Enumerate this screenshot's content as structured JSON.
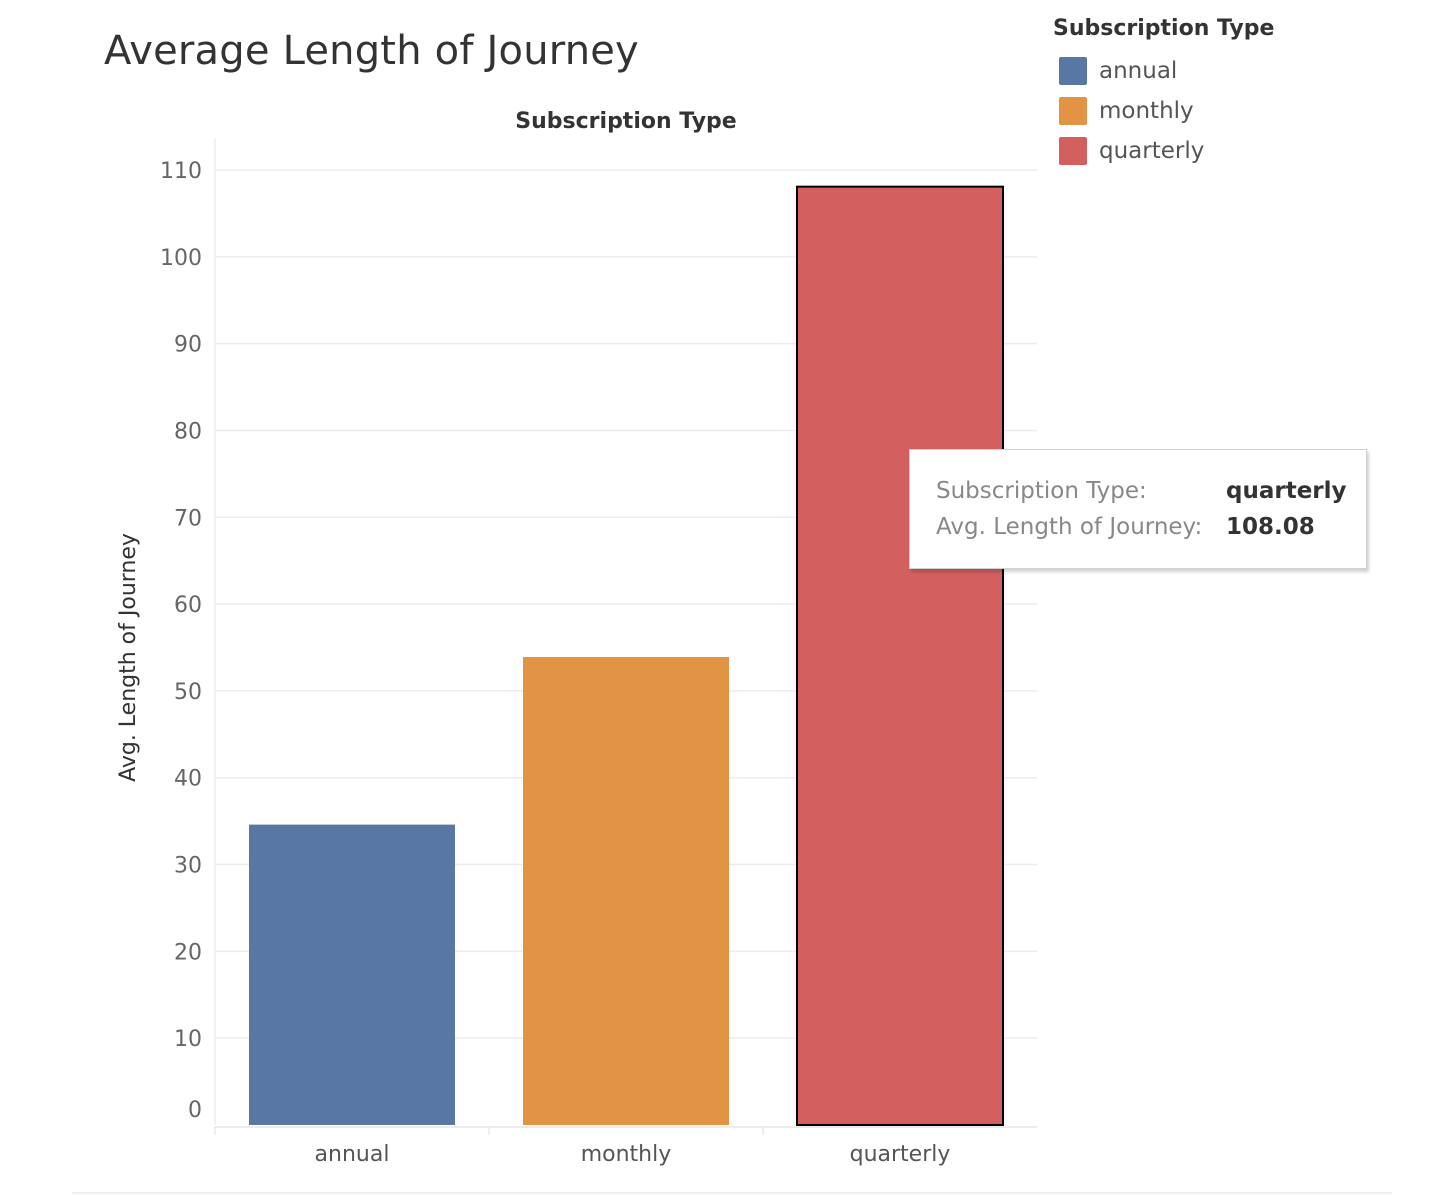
{
  "chart_data": {
    "type": "bar",
    "title": "Average Length of Journey",
    "column_header": "Subscription Type",
    "ylabel": "Avg. Length of Journey",
    "xlabel": "",
    "ylim": [
      0,
      110
    ],
    "yticks": [
      0,
      10,
      20,
      30,
      40,
      50,
      60,
      70,
      80,
      90,
      100,
      110
    ],
    "categories": [
      "annual",
      "monthly",
      "quarterly"
    ],
    "values": [
      34.6,
      53.9,
      108.08
    ],
    "colors": [
      "#5977a3",
      "#e29444",
      "#d2605f"
    ],
    "highlighted": "quarterly",
    "grid": true,
    "legend": {
      "title": "Subscription Type",
      "placement": "top-right",
      "items": [
        {
          "label": "annual",
          "color": "#5977a3"
        },
        {
          "label": "monthly",
          "color": "#e29444"
        },
        {
          "label": "quarterly",
          "color": "#d2605f"
        }
      ]
    },
    "tooltip": {
      "rows": [
        {
          "key": "Subscription Type:",
          "value": "quarterly"
        },
        {
          "key": "Avg. Length of Journey:",
          "value": "108.08"
        }
      ]
    }
  }
}
